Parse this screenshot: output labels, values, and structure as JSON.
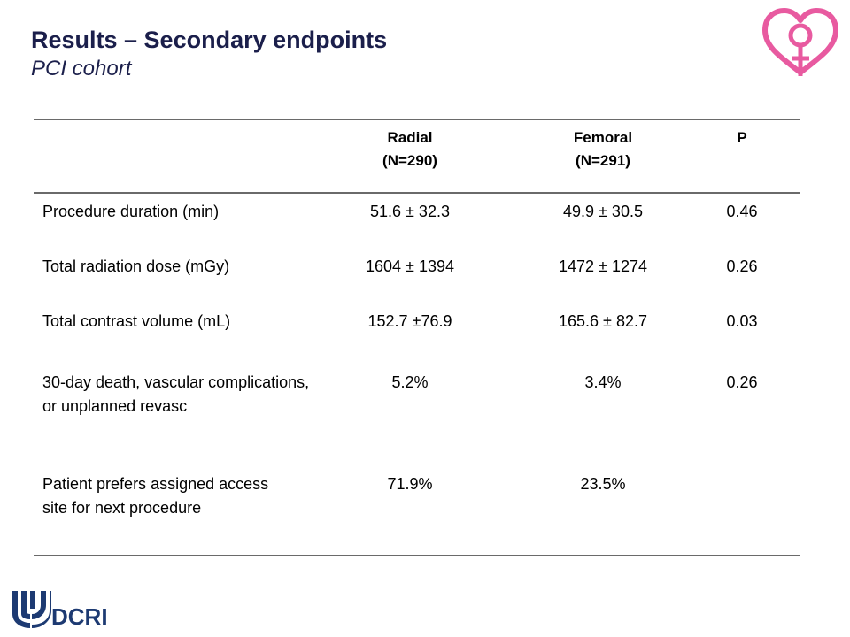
{
  "header": {
    "title": "Results – Secondary endpoints",
    "subtitle": "PCI cohort",
    "logo_icon": "heart-female-symbol-icon",
    "logo_color": "#e85aa0"
  },
  "table": {
    "columns": [
      {
        "line1": "",
        "line2": ""
      },
      {
        "line1": "Radial",
        "line2": "(N=290)"
      },
      {
        "line1": "Femoral",
        "line2": "(N=291)"
      },
      {
        "line1": "P",
        "line2": ""
      }
    ],
    "rows": [
      {
        "label": "Procedure duration (min)",
        "radial": "51.6 ± 32.3",
        "femoral": "49.9 ± 30.5",
        "p": "0.46"
      },
      {
        "label": "Total radiation dose (mGy)",
        "radial": "1604 ± 1394",
        "femoral": "1472 ± 1274",
        "p": "0.26"
      },
      {
        "label": "Total contrast volume (mL)",
        "radial": "152.7 ±76.9",
        "femoral": "165.6 ± 82.7",
        "p": "0.03"
      },
      {
        "label": "30-day death, vascular complications, or unplanned revasc",
        "radial": "5.2%",
        "femoral": "3.4%",
        "p": "0.26"
      },
      {
        "label": "Patient prefers assigned access site for next procedure",
        "radial": "71.9%",
        "femoral": "23.5%",
        "p": ""
      }
    ]
  },
  "footer": {
    "org": "DCRI",
    "logo_icon": "duke-shield-icon",
    "logo_color": "#1d3a72"
  }
}
